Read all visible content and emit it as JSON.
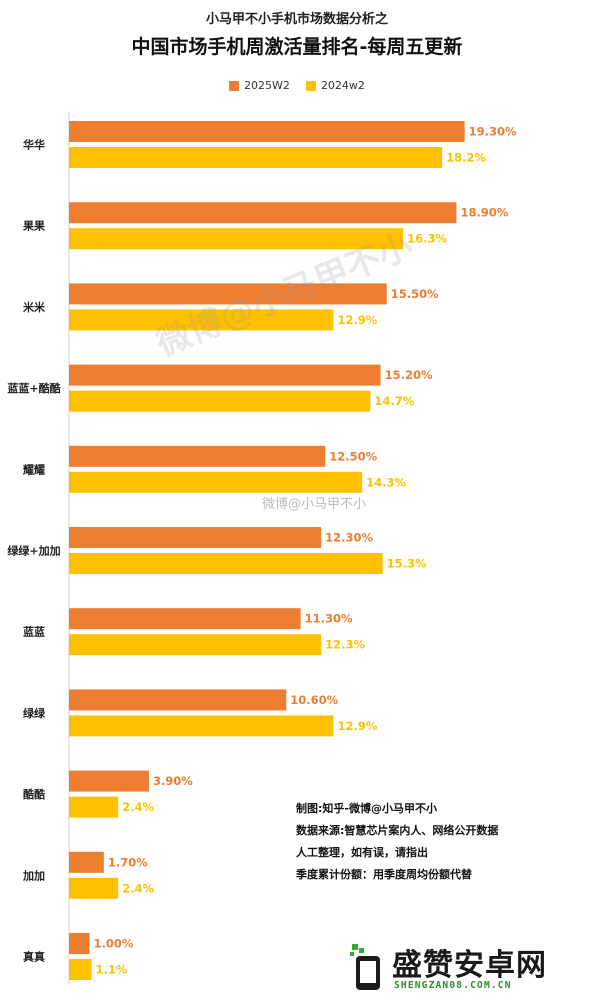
{
  "header": {
    "supertitle": "小马甲不小手机市场数据分析之",
    "title": "中国市场手机周激活量排名-每周五更新"
  },
  "chart_data": {
    "type": "bar",
    "orientation": "horizontal",
    "title": "中国市场手机周激活量排名-每周五更新",
    "categories": [
      "华华",
      "果果",
      "米米",
      "蓝蓝+酷酷",
      "耀耀",
      "绿绿+加加",
      "蓝蓝",
      "绿绿",
      "酷酷",
      "加加",
      "真真"
    ],
    "series": [
      {
        "name": "2025W2",
        "color": "#ED7D31",
        "values": [
          19.3,
          18.9,
          15.5,
          15.2,
          12.5,
          12.3,
          11.3,
          10.6,
          3.9,
          1.7,
          1.0
        ],
        "labels": [
          "19.30%",
          "18.90%",
          "15.50%",
          "15.20%",
          "12.50%",
          "12.30%",
          "11.30%",
          "10.60%",
          "3.90%",
          "1.70%",
          "1.00%"
        ]
      },
      {
        "name": "2024w2",
        "color": "#FFC000",
        "values": [
          18.2,
          16.3,
          12.9,
          14.7,
          14.3,
          15.3,
          12.3,
          12.9,
          2.4,
          2.4,
          1.1
        ],
        "labels": [
          "18.2%",
          "16.3%",
          "12.9%",
          "14.7%",
          "14.3%",
          "15.3%",
          "12.3%",
          "12.9%",
          "2.4%",
          "2.4%",
          "1.1%"
        ]
      }
    ],
    "xlim": [
      0,
      20.5
    ],
    "grid": false,
    "legend_position": "top"
  },
  "notes": [
    "制图:知乎-微博@小马甲不小",
    "数据来源:智慧芯片案内人、网络公开数据",
    "人工整理，如有误，请指出",
    "季度累计份额：用季度周均份额代替"
  ],
  "watermarks": {
    "center": "微博@小马甲不小",
    "small": "微博@小马甲不小"
  },
  "brand": {
    "name": "盛赞安卓网",
    "url": "SHENGZAN08.COM.CN"
  }
}
